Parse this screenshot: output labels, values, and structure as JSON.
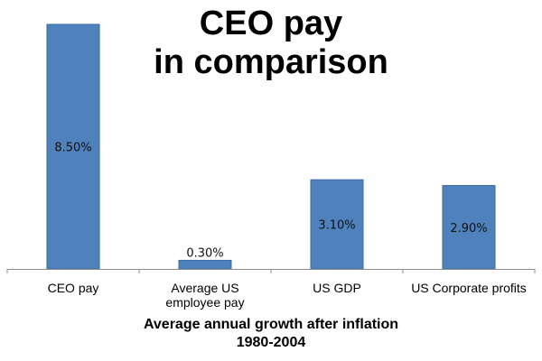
{
  "chart_data": {
    "type": "bar",
    "title_lines": [
      "CEO pay",
      "in comparison"
    ],
    "categories": [
      [
        "CEO pay"
      ],
      [
        "Average US",
        "employee pay"
      ],
      [
        "US GDP"
      ],
      [
        "US Corporate profits"
      ]
    ],
    "values": [
      8.5,
      0.3,
      3.1,
      2.9
    ],
    "data_labels": [
      "8.50%",
      "0.30%",
      "3.10%",
      "2.90%"
    ],
    "xlabel_lines": [
      "Average annual growth after inflation",
      "1980-2004"
    ],
    "ylabel": "",
    "ylim": [
      0,
      8.5
    ],
    "grid": false,
    "legend": "none",
    "bar_color": "#4F81BD",
    "bar_edge_color": "#3A6AA3",
    "axis_color": "#8C8C8C"
  }
}
